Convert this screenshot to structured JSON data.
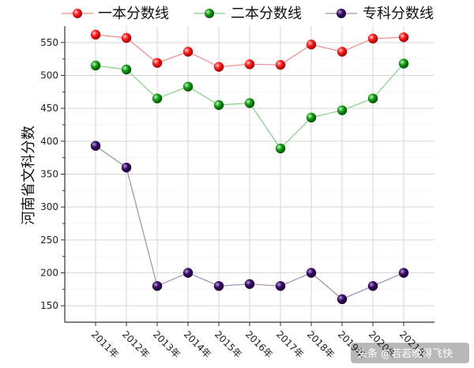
{
  "chart_data": {
    "type": "line",
    "title": "",
    "xlabel": "",
    "ylabel": "河南省文科分数",
    "categories": [
      "2011年",
      "2012年",
      "2013年",
      "2014年",
      "2015年",
      "2016年",
      "2017年",
      "2018年",
      "2019年",
      "2020年",
      "2021年"
    ],
    "ylim": [
      125,
      575
    ],
    "yticks": [
      150,
      200,
      250,
      300,
      350,
      400,
      450,
      500,
      550
    ],
    "grid": true,
    "legend_position": "top",
    "series": [
      {
        "name": "一本分数线",
        "color": "#ff1a1a",
        "line_color": "#f08a8a",
        "values": [
          562,
          557,
          519,
          536,
          513,
          517,
          516,
          547,
          536,
          556,
          558
        ]
      },
      {
        "name": "二本分数线",
        "color": "#15a015",
        "line_color": "#86cf86",
        "values": [
          515,
          509,
          465,
          483,
          455,
          458,
          389,
          436,
          447,
          465,
          518
        ]
      },
      {
        "name": "专科分数线",
        "color": "#3a0a6a",
        "line_color": "#9a8fb0",
        "values": [
          393,
          360,
          180,
          200,
          180,
          183,
          180,
          200,
          160,
          180,
          200
        ]
      }
    ],
    "watermark": "头条 @若若晚得飞快"
  }
}
